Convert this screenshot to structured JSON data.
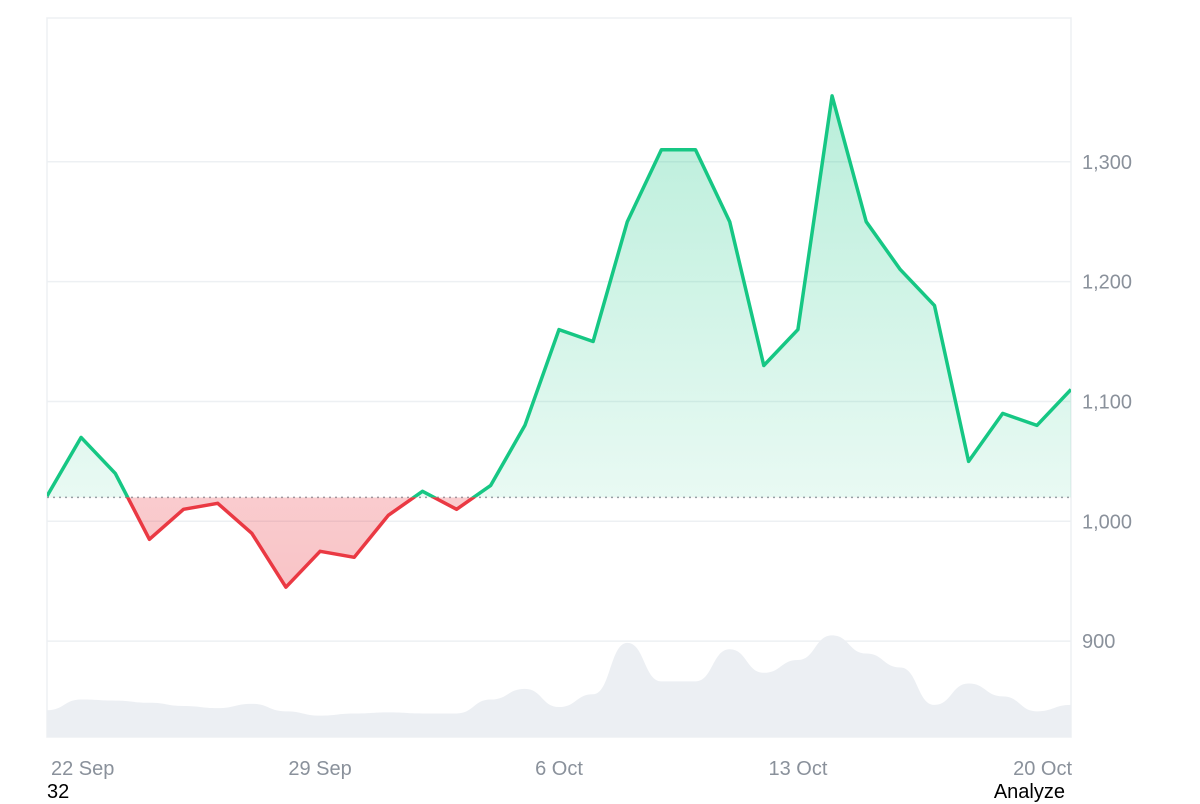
{
  "chart_data": {
    "type": "area",
    "baseline": 1020,
    "ylim": [
      820,
      1420
    ],
    "y_ticks": [
      900,
      1000,
      1100,
      1200,
      1300
    ],
    "y_tick_labels": [
      "900",
      "1,000",
      "1,100",
      "1,200",
      "1,300"
    ],
    "x_range": [
      "2024-09-21",
      "2024-10-21"
    ],
    "x_ticks": [
      {
        "date": "2024-09-22",
        "label": "22 Sep"
      },
      {
        "date": "2024-09-29",
        "label": "29 Sep"
      },
      {
        "date": "2024-10-06",
        "label": "6 Oct"
      },
      {
        "date": "2024-10-13",
        "label": "13 Oct"
      },
      {
        "date": "2024-10-20",
        "label": "20 Oct"
      }
    ],
    "series": [
      {
        "x": [
          "2024-09-21",
          "2024-09-22",
          "2024-09-23",
          "2024-09-24",
          "2024-09-25",
          "2024-09-26",
          "2024-09-27",
          "2024-09-28",
          "2024-09-29",
          "2024-09-30",
          "2024-10-01",
          "2024-10-02",
          "2024-10-03",
          "2024-10-04",
          "2024-10-05",
          "2024-10-06",
          "2024-10-07",
          "2024-10-08",
          "2024-10-09",
          "2024-10-10",
          "2024-10-11",
          "2024-10-12",
          "2024-10-13",
          "2024-10-14",
          "2024-10-15",
          "2024-10-16",
          "2024-10-17",
          "2024-10-18",
          "2024-10-19",
          "2024-10-20",
          "2024-10-21"
        ],
        "y": [
          1021,
          1070,
          1040,
          985,
          1010,
          1015,
          990,
          945,
          975,
          970,
          1005,
          1025,
          1010,
          1030,
          1080,
          1160,
          1150,
          1250,
          1310,
          1310,
          1250,
          1130,
          1160,
          1355,
          1250,
          1210,
          1180,
          1050,
          1090,
          1080,
          1110
        ]
      }
    ],
    "volume": {
      "x": [
        "2024-09-21",
        "2024-09-22",
        "2024-09-23",
        "2024-09-24",
        "2024-09-25",
        "2024-09-26",
        "2024-09-27",
        "2024-09-28",
        "2024-09-29",
        "2024-09-30",
        "2024-10-01",
        "2024-10-02",
        "2024-10-03",
        "2024-10-04",
        "2024-10-05",
        "2024-10-06",
        "2024-10-07",
        "2024-10-08",
        "2024-10-09",
        "2024-10-10",
        "2024-10-11",
        "2024-10-12",
        "2024-10-13",
        "2024-10-14",
        "2024-10-15",
        "2024-10-16",
        "2024-10-17",
        "2024-10-18",
        "2024-10-19",
        "2024-10-20",
        "2024-10-21"
      ],
      "values": [
        0.25,
        0.35,
        0.34,
        0.32,
        0.29,
        0.27,
        0.31,
        0.24,
        0.2,
        0.22,
        0.23,
        0.22,
        0.22,
        0.35,
        0.45,
        0.28,
        0.4,
        0.88,
        0.52,
        0.52,
        0.82,
        0.6,
        0.72,
        0.95,
        0.78,
        0.65,
        0.3,
        0.5,
        0.38,
        0.24,
        0.3
      ]
    },
    "colors": {
      "up": "#16c784",
      "down": "#ea3943",
      "volume": "#eceff3",
      "grid": "#edf0f3"
    },
    "grid": true
  },
  "footer": {
    "left": "32",
    "right": "Analyze"
  }
}
